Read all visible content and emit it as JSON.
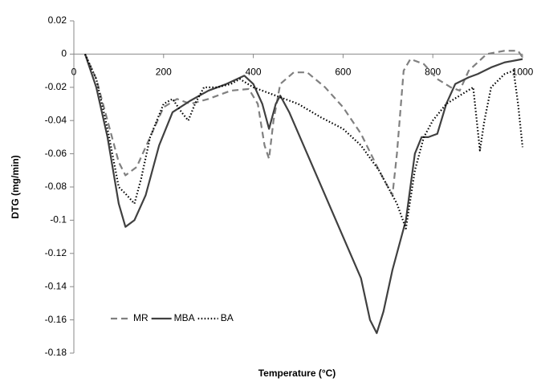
{
  "chart_data": {
    "type": "line",
    "y_label": "DTG (mg/min)",
    "x_label": "Temperature (°C)",
    "xlim": [
      0,
      1000
    ],
    "xticks": [
      0,
      200,
      400,
      600,
      800,
      1000
    ],
    "ylim": [
      -0.18,
      0.02
    ],
    "yticks": [
      0.02,
      0,
      -0.02,
      -0.04,
      -0.06,
      -0.08,
      -0.1,
      -0.12,
      -0.14,
      -0.16,
      -0.18
    ],
    "grid": false,
    "legend": "lower left",
    "series": [
      {
        "name": "MR",
        "color": "#808080",
        "dash": "8,5",
        "x": [
          25,
          50,
          75,
          100,
          115,
          140,
          170,
          200,
          230,
          260,
          300,
          350,
          390,
          410,
          425,
          435,
          445,
          460,
          490,
          520,
          560,
          600,
          640,
          680,
          710,
          720,
          735,
          750,
          780,
          810,
          840,
          860,
          880,
          920,
          960,
          990,
          1000
        ],
        "values": [
          0,
          -0.015,
          -0.04,
          -0.065,
          -0.073,
          -0.068,
          -0.05,
          -0.032,
          -0.027,
          -0.03,
          -0.027,
          -0.022,
          -0.021,
          -0.03,
          -0.055,
          -0.063,
          -0.04,
          -0.018,
          -0.011,
          -0.011,
          -0.02,
          -0.032,
          -0.048,
          -0.07,
          -0.085,
          -0.06,
          -0.01,
          -0.003,
          -0.006,
          -0.015,
          -0.02,
          -0.022,
          -0.01,
          0,
          0.002,
          0.002,
          -0.002
        ]
      },
      {
        "name": "MBA",
        "color": "#404040",
        "dash": "none",
        "x": [
          25,
          50,
          75,
          100,
          115,
          135,
          160,
          190,
          220,
          260,
          300,
          340,
          380,
          400,
          420,
          435,
          450,
          460,
          480,
          520,
          560,
          600,
          640,
          660,
          675,
          690,
          710,
          740,
          760,
          775,
          790,
          810,
          830,
          850,
          880,
          900,
          930,
          960,
          1000
        ],
        "values": [
          0,
          -0.02,
          -0.05,
          -0.09,
          -0.104,
          -0.1,
          -0.085,
          -0.055,
          -0.035,
          -0.028,
          -0.022,
          -0.018,
          -0.013,
          -0.018,
          -0.03,
          -0.045,
          -0.03,
          -0.025,
          -0.035,
          -0.06,
          -0.085,
          -0.11,
          -0.135,
          -0.16,
          -0.168,
          -0.155,
          -0.13,
          -0.1,
          -0.06,
          -0.05,
          -0.05,
          -0.048,
          -0.03,
          -0.018,
          -0.014,
          -0.012,
          -0.008,
          -0.005,
          -0.003
        ]
      },
      {
        "name": "BA",
        "color": "#000000",
        "dash": "1.5,2.5",
        "x": [
          25,
          50,
          75,
          100,
          115,
          135,
          150,
          170,
          200,
          220,
          240,
          255,
          270,
          290,
          320,
          350,
          370,
          400,
          420,
          450,
          500,
          550,
          600,
          640,
          680,
          720,
          740,
          760,
          780,
          800,
          830,
          860,
          890,
          905,
          915,
          930,
          960,
          980,
          990,
          1000
        ],
        "values": [
          0,
          -0.015,
          -0.045,
          -0.08,
          -0.084,
          -0.09,
          -0.075,
          -0.05,
          -0.03,
          -0.027,
          -0.035,
          -0.04,
          -0.03,
          -0.02,
          -0.02,
          -0.018,
          -0.015,
          -0.02,
          -0.022,
          -0.025,
          -0.03,
          -0.038,
          -0.045,
          -0.055,
          -0.07,
          -0.09,
          -0.105,
          -0.07,
          -0.05,
          -0.04,
          -0.03,
          -0.025,
          -0.02,
          -0.058,
          -0.04,
          -0.02,
          -0.012,
          -0.01,
          -0.03,
          -0.056
        ]
      }
    ]
  }
}
